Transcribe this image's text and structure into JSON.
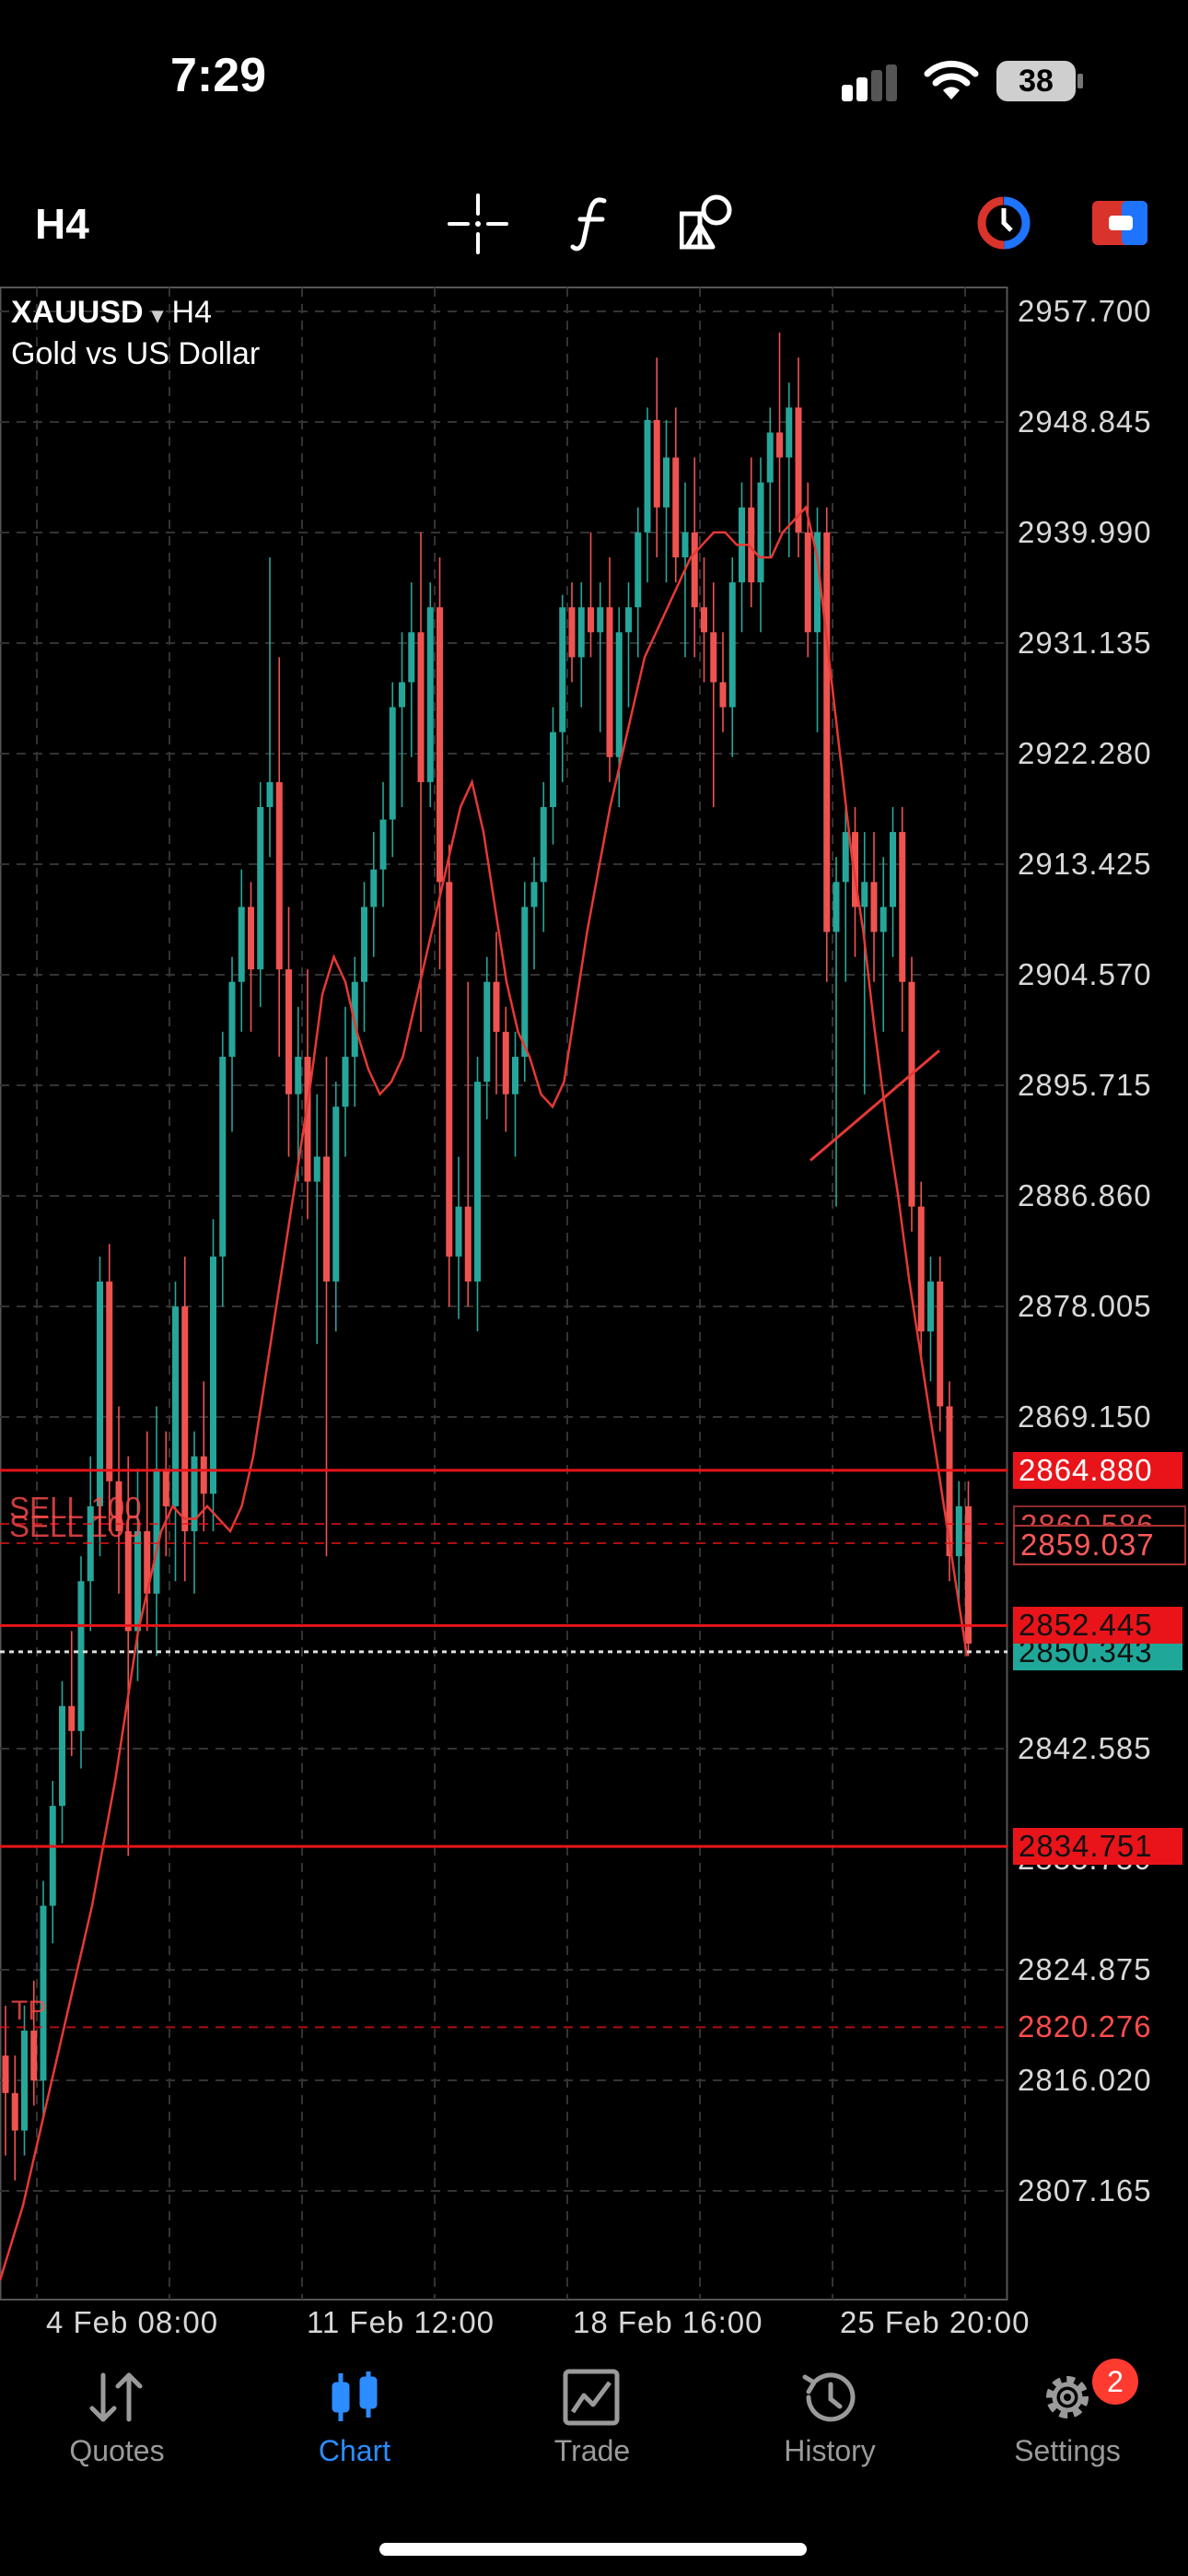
{
  "status_bar": {
    "time": "7:29",
    "battery": "38"
  },
  "toolbar": {
    "timeframe": "H4",
    "icons": [
      "crosshair-icon",
      "function-icon",
      "objects-icon",
      "one-click-trading-icon",
      "trade-button-icon"
    ]
  },
  "chart": {
    "symbol": "XAUUSD",
    "symbol_arrow": "▾",
    "timeframe": "H4",
    "description": "Gold vs US Dollar",
    "price_ticks": [
      "2957.700",
      "2948.845",
      "2939.990",
      "2931.135",
      "2922.280",
      "2913.425",
      "2904.570",
      "2895.715",
      "2886.860",
      "2878.005",
      "2869.150",
      "2842.585",
      "2824.875",
      "2816.020",
      "2807.165"
    ],
    "time_ticks": [
      "4 Feb 08:00",
      "11 Feb 12:00",
      "18 Feb 16:00",
      "25 Feb 20:00"
    ],
    "price_tags": {
      "tp_upper": "2864.880",
      "hidden_order": "2860.586",
      "open_price": "2859.037",
      "ask": "2852.445",
      "bid": "2850.343",
      "sl": "2834.751",
      "hidden_tick": "2833.730",
      "tp_lower": "2820.276"
    },
    "order_labels": [
      "SELL 100",
      "SELL 100"
    ],
    "tp_label": "TP",
    "colors": {
      "bull": "#26a69a",
      "bear": "#ef5350",
      "ma": "#e53935",
      "level": "#e8141a",
      "grid": "#333333"
    }
  },
  "chart_data": {
    "type": "candlestick",
    "symbol": "XAUUSD",
    "timeframe": "H4",
    "ylim": [
      2800.5,
      2961.0
    ],
    "candles": [
      {
        "o": 2818.0,
        "h": 2822.0,
        "l": 2810.0,
        "c": 2815.0
      },
      {
        "o": 2815.0,
        "h": 2818.0,
        "l": 2808.0,
        "c": 2812.0
      },
      {
        "o": 2812.0,
        "h": 2822.0,
        "l": 2810.0,
        "c": 2820.0
      },
      {
        "o": 2820.0,
        "h": 2824.0,
        "l": 2814.0,
        "c": 2816.0
      },
      {
        "o": 2816.0,
        "h": 2832.0,
        "l": 2813.0,
        "c": 2830.0
      },
      {
        "o": 2830.0,
        "h": 2840.0,
        "l": 2827.0,
        "c": 2838.0
      },
      {
        "o": 2838.0,
        "h": 2848.0,
        "l": 2835.0,
        "c": 2846.0
      },
      {
        "o": 2846.0,
        "h": 2852.0,
        "l": 2842.0,
        "c": 2844.0
      },
      {
        "o": 2844.0,
        "h": 2858.0,
        "l": 2841.0,
        "c": 2856.0
      },
      {
        "o": 2856.0,
        "h": 2866.0,
        "l": 2852.0,
        "c": 2862.0
      },
      {
        "o": 2862.0,
        "h": 2882.0,
        "l": 2858.0,
        "c": 2880.0
      },
      {
        "o": 2880.0,
        "h": 2883.0,
        "l": 2860.0,
        "c": 2864.0
      },
      {
        "o": 2864.0,
        "h": 2870.0,
        "l": 2855.0,
        "c": 2860.0
      },
      {
        "o": 2860.0,
        "h": 2866.0,
        "l": 2834.0,
        "c": 2852.0
      },
      {
        "o": 2852.0,
        "h": 2865.0,
        "l": 2848.0,
        "c": 2860.0
      },
      {
        "o": 2860.0,
        "h": 2868.0,
        "l": 2852.0,
        "c": 2855.0
      },
      {
        "o": 2855.0,
        "h": 2870.0,
        "l": 2850.0,
        "c": 2865.0
      },
      {
        "o": 2865.0,
        "h": 2868.0,
        "l": 2858.0,
        "c": 2862.0
      },
      {
        "o": 2862.0,
        "h": 2880.0,
        "l": 2856.0,
        "c": 2878.0
      },
      {
        "o": 2878.0,
        "h": 2882.0,
        "l": 2856.0,
        "c": 2860.0
      },
      {
        "o": 2860.0,
        "h": 2868.0,
        "l": 2855.0,
        "c": 2866.0
      },
      {
        "o": 2866.0,
        "h": 2872.0,
        "l": 2860.0,
        "c": 2863.0
      },
      {
        "o": 2863.0,
        "h": 2885.0,
        "l": 2860.0,
        "c": 2882.0
      },
      {
        "o": 2882.0,
        "h": 2900.0,
        "l": 2878.0,
        "c": 2898.0
      },
      {
        "o": 2898.0,
        "h": 2906.0,
        "l": 2892.0,
        "c": 2904.0
      },
      {
        "o": 2904.0,
        "h": 2913.0,
        "l": 2900.0,
        "c": 2910.0
      },
      {
        "o": 2910.0,
        "h": 2912.0,
        "l": 2900.0,
        "c": 2905.0
      },
      {
        "o": 2905.0,
        "h": 2920.0,
        "l": 2902.0,
        "c": 2918.0
      },
      {
        "o": 2918.0,
        "h": 2938.0,
        "l": 2914.0,
        "c": 2920.0
      },
      {
        "o": 2920.0,
        "h": 2930.0,
        "l": 2898.0,
        "c": 2905.0
      },
      {
        "o": 2905.0,
        "h": 2910.0,
        "l": 2890.0,
        "c": 2895.0
      },
      {
        "o": 2895.0,
        "h": 2902.0,
        "l": 2888.0,
        "c": 2898.0
      },
      {
        "o": 2898.0,
        "h": 2905.0,
        "l": 2885.0,
        "c": 2888.0
      },
      {
        "o": 2888.0,
        "h": 2895.0,
        "l": 2875.0,
        "c": 2890.0
      },
      {
        "o": 2890.0,
        "h": 2898.0,
        "l": 2858.0,
        "c": 2880.0
      },
      {
        "o": 2880.0,
        "h": 2896.0,
        "l": 2876.0,
        "c": 2894.0
      },
      {
        "o": 2894.0,
        "h": 2902.0,
        "l": 2890.0,
        "c": 2898.0
      },
      {
        "o": 2898.0,
        "h": 2906.0,
        "l": 2894.0,
        "c": 2904.0
      },
      {
        "o": 2904.0,
        "h": 2912.0,
        "l": 2900.0,
        "c": 2910.0
      },
      {
        "o": 2910.0,
        "h": 2916.0,
        "l": 2906.0,
        "c": 2913.0
      },
      {
        "o": 2913.0,
        "h": 2920.0,
        "l": 2910.0,
        "c": 2917.0
      },
      {
        "o": 2917.0,
        "h": 2928.0,
        "l": 2914.0,
        "c": 2926.0
      },
      {
        "o": 2926.0,
        "h": 2932.0,
        "l": 2918.0,
        "c": 2928.0
      },
      {
        "o": 2928.0,
        "h": 2936.0,
        "l": 2922.0,
        "c": 2932.0
      },
      {
        "o": 2932.0,
        "h": 2940.0,
        "l": 2900.0,
        "c": 2920.0
      },
      {
        "o": 2920.0,
        "h": 2936.0,
        "l": 2918.0,
        "c": 2934.0
      },
      {
        "o": 2934.0,
        "h": 2938.0,
        "l": 2905.0,
        "c": 2912.0
      },
      {
        "o": 2912.0,
        "h": 2915.0,
        "l": 2878.0,
        "c": 2882.0
      },
      {
        "o": 2882.0,
        "h": 2890.0,
        "l": 2877.0,
        "c": 2886.0
      },
      {
        "o": 2886.0,
        "h": 2904.0,
        "l": 2878.0,
        "c": 2880.0
      },
      {
        "o": 2880.0,
        "h": 2898.0,
        "l": 2876.0,
        "c": 2896.0
      },
      {
        "o": 2896.0,
        "h": 2906.0,
        "l": 2893.0,
        "c": 2904.0
      },
      {
        "o": 2904.0,
        "h": 2908.0,
        "l": 2895.0,
        "c": 2900.0
      },
      {
        "o": 2900.0,
        "h": 2902.0,
        "l": 2892.0,
        "c": 2895.0
      },
      {
        "o": 2895.0,
        "h": 2900.0,
        "l": 2890.0,
        "c": 2898.0
      },
      {
        "o": 2898.0,
        "h": 2912.0,
        "l": 2896.0,
        "c": 2910.0
      },
      {
        "o": 2910.0,
        "h": 2914.0,
        "l": 2905.0,
        "c": 2912.0
      },
      {
        "o": 2912.0,
        "h": 2920.0,
        "l": 2908.0,
        "c": 2918.0
      },
      {
        "o": 2918.0,
        "h": 2926.0,
        "l": 2915.0,
        "c": 2924.0
      },
      {
        "o": 2924.0,
        "h": 2935.0,
        "l": 2920.0,
        "c": 2934.0
      },
      {
        "o": 2934.0,
        "h": 2936.0,
        "l": 2928.0,
        "c": 2930.0
      },
      {
        "o": 2930.0,
        "h": 2936.0,
        "l": 2926.0,
        "c": 2934.0
      },
      {
        "o": 2934.0,
        "h": 2940.0,
        "l": 2930.0,
        "c": 2932.0
      },
      {
        "o": 2932.0,
        "h": 2936.0,
        "l": 2924.0,
        "c": 2934.0
      },
      {
        "o": 2934.0,
        "h": 2938.0,
        "l": 2920.0,
        "c": 2922.0
      },
      {
        "o": 2922.0,
        "h": 2934.0,
        "l": 2918.0,
        "c": 2932.0
      },
      {
        "o": 2932.0,
        "h": 2936.0,
        "l": 2926.0,
        "c": 2934.0
      },
      {
        "o": 2934.0,
        "h": 2942.0,
        "l": 2930.0,
        "c": 2940.0
      },
      {
        "o": 2940.0,
        "h": 2950.0,
        "l": 2936.0,
        "c": 2949.0
      },
      {
        "o": 2949.0,
        "h": 2954.0,
        "l": 2938.0,
        "c": 2942.0
      },
      {
        "o": 2942.0,
        "h": 2949.0,
        "l": 2936.0,
        "c": 2946.0
      },
      {
        "o": 2946.0,
        "h": 2950.0,
        "l": 2936.0,
        "c": 2938.0
      },
      {
        "o": 2938.0,
        "h": 2944.0,
        "l": 2930.0,
        "c": 2940.0
      },
      {
        "o": 2940.0,
        "h": 2946.0,
        "l": 2930.0,
        "c": 2934.0
      },
      {
        "o": 2934.0,
        "h": 2938.0,
        "l": 2928.0,
        "c": 2932.0
      },
      {
        "o": 2932.0,
        "h": 2936.0,
        "l": 2918.0,
        "c": 2928.0
      },
      {
        "o": 2928.0,
        "h": 2932.0,
        "l": 2924.0,
        "c": 2926.0
      },
      {
        "o": 2926.0,
        "h": 2938.0,
        "l": 2922.0,
        "c": 2936.0
      },
      {
        "o": 2936.0,
        "h": 2944.0,
        "l": 2932.0,
        "c": 2942.0
      },
      {
        "o": 2942.0,
        "h": 2946.0,
        "l": 2934.0,
        "c": 2936.0
      },
      {
        "o": 2936.0,
        "h": 2946.0,
        "l": 2932.0,
        "c": 2944.0
      },
      {
        "o": 2944.0,
        "h": 2950.0,
        "l": 2938.0,
        "c": 2948.0
      },
      {
        "o": 2948.0,
        "h": 2956.0,
        "l": 2940.0,
        "c": 2946.0
      },
      {
        "o": 2946.0,
        "h": 2952.0,
        "l": 2938.0,
        "c": 2950.0
      },
      {
        "o": 2950.0,
        "h": 2954.0,
        "l": 2938.0,
        "c": 2940.0
      },
      {
        "o": 2940.0,
        "h": 2944.0,
        "l": 2930.0,
        "c": 2932.0
      },
      {
        "o": 2932.0,
        "h": 2942.0,
        "l": 2924.0,
        "c": 2940.0
      },
      {
        "o": 2940.0,
        "h": 2942.0,
        "l": 2904.0,
        "c": 2908.0
      },
      {
        "o": 2908.0,
        "h": 2914.0,
        "l": 2886.0,
        "c": 2912.0
      },
      {
        "o": 2912.0,
        "h": 2918.0,
        "l": 2904.0,
        "c": 2916.0
      },
      {
        "o": 2916.0,
        "h": 2918.0,
        "l": 2906.0,
        "c": 2910.0
      },
      {
        "o": 2910.0,
        "h": 2916.0,
        "l": 2895.0,
        "c": 2912.0
      },
      {
        "o": 2912.0,
        "h": 2916.0,
        "l": 2904.0,
        "c": 2908.0
      },
      {
        "o": 2908.0,
        "h": 2914.0,
        "l": 2900.0,
        "c": 2910.0
      },
      {
        "o": 2910.0,
        "h": 2918.0,
        "l": 2906.0,
        "c": 2916.0
      },
      {
        "o": 2916.0,
        "h": 2918.0,
        "l": 2900.0,
        "c": 2904.0
      },
      {
        "o": 2904.0,
        "h": 2906.0,
        "l": 2884.0,
        "c": 2886.0
      },
      {
        "o": 2886.0,
        "h": 2888.0,
        "l": 2874.0,
        "c": 2876.0
      },
      {
        "o": 2876.0,
        "h": 2882.0,
        "l": 2872.0,
        "c": 2880.0
      },
      {
        "o": 2880.0,
        "h": 2882.0,
        "l": 2868.0,
        "c": 2870.0
      },
      {
        "o": 2870.0,
        "h": 2872.0,
        "l": 2856.0,
        "c": 2858.0
      },
      {
        "o": 2858.0,
        "h": 2864.0,
        "l": 2854.0,
        "c": 2862.0
      },
      {
        "o": 2862.0,
        "h": 2864.0,
        "l": 2850.0,
        "c": 2851.0
      }
    ],
    "ma": [
      2800.0,
      2803.0,
      2806.0,
      2810.0,
      2814.0,
      2818.0,
      2822.0,
      2826.0,
      2830.0,
      2835.0,
      2840.0,
      2846.0,
      2852.0,
      2856.0,
      2860.0,
      2862.0,
      2861.0,
      2861.0,
      2862.0,
      2861.0,
      2860.0,
      2862.0,
      2866.0,
      2872.0,
      2878.0,
      2884.0,
      2890.0,
      2896.0,
      2903.0,
      2906.0,
      2904.0,
      2900.0,
      2897.0,
      2895.0,
      2896.0,
      2898.0,
      2902.0,
      2906.0,
      2910.0,
      2914.0,
      2918.0,
      2920.0,
      2916.0,
      2910.0,
      2904.0,
      2900.0,
      2898.0,
      2895.0,
      2894.0,
      2896.0,
      2902.0,
      2908.0,
      2913.0,
      2918.0,
      2922.0,
      2926.0,
      2930.0,
      2932.0,
      2934.0,
      2936.0,
      2938.0,
      2939.0,
      2940.0,
      2940.0,
      2939.0,
      2939.0,
      2938.0,
      2938.0,
      2940.0,
      2941.0,
      2942.0,
      2938.0,
      2930.0,
      2922.0,
      2914.0,
      2908.0,
      2900.0,
      2893.0,
      2887.0,
      2880.0,
      2874.0,
      2868.0,
      2862.0,
      2856.0,
      2850.0
    ],
    "levels": [
      2864.88,
      2859.037,
      2852.445,
      2850.343,
      2834.751,
      2820.276,
      2860.586
    ]
  },
  "tab_bar": {
    "items": [
      {
        "label": "Quotes",
        "icon": "quotes-icon"
      },
      {
        "label": "Chart",
        "icon": "chart-icon"
      },
      {
        "label": "Trade",
        "icon": "trade-icon"
      },
      {
        "label": "History",
        "icon": "history-icon"
      },
      {
        "label": "Settings",
        "icon": "settings-icon"
      }
    ],
    "active": "Chart",
    "settings_badge": "2"
  }
}
